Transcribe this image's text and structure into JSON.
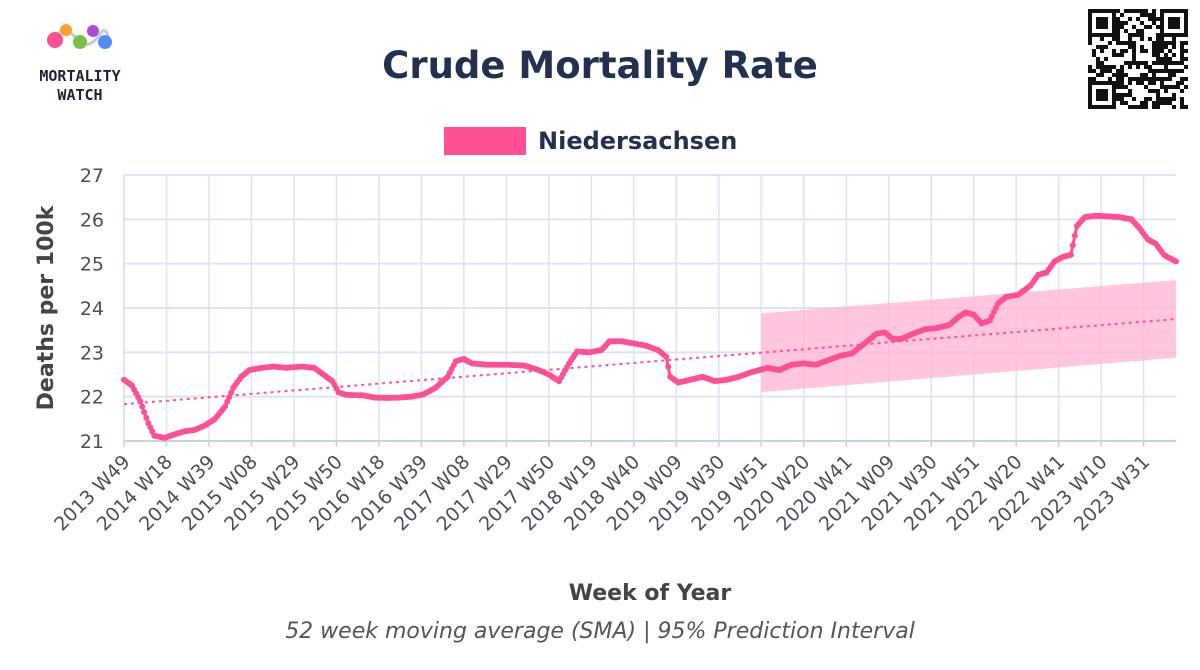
{
  "colors": {
    "series": "#ff4f95",
    "band": "#ffb3d1",
    "trend": "#ff4f95",
    "title": "#233150",
    "grid": "#dde3f3",
    "axis": "#c8d0e8"
  },
  "logo": {
    "line1": "MORTALITY",
    "line2": "WATCH",
    "icon": "mortality-watch-logo-icon"
  },
  "qr": {
    "icon": "qr-code-icon"
  },
  "chart_data": {
    "type": "line",
    "title": "Crude Mortality Rate",
    "subtitle": "52 week moving average (SMA) | 95% Prediction Interval",
    "xlabel": "Week of Year",
    "ylabel": "Deaths per 100k",
    "ylim": [
      21,
      27
    ],
    "yticks": [
      21,
      22,
      23,
      24,
      25,
      26,
      27
    ],
    "xlim": [
      0,
      520
    ],
    "xticks": [
      {
        "label": "2013 W49",
        "x": 0
      },
      {
        "label": "2014 W18",
        "x": 21
      },
      {
        "label": "2014 W39",
        "x": 42
      },
      {
        "label": "2015 W08",
        "x": 63
      },
      {
        "label": "2015 W29",
        "x": 84
      },
      {
        "label": "2015 W50",
        "x": 105
      },
      {
        "label": "2016 W18",
        "x": 126
      },
      {
        "label": "2016 W39",
        "x": 147
      },
      {
        "label": "2017 W08",
        "x": 168
      },
      {
        "label": "2017 W29",
        "x": 189
      },
      {
        "label": "2017 W50",
        "x": 210
      },
      {
        "label": "2018 W19",
        "x": 231
      },
      {
        "label": "2018 W40",
        "x": 252
      },
      {
        "label": "2019 W09",
        "x": 273
      },
      {
        "label": "2019 W30",
        "x": 294
      },
      {
        "label": "2019 W51",
        "x": 315
      },
      {
        "label": "2020 W20",
        "x": 336
      },
      {
        "label": "2020 W41",
        "x": 357
      },
      {
        "label": "2021 W09",
        "x": 378
      },
      {
        "label": "2021 W30",
        "x": 399
      },
      {
        "label": "2021 W51",
        "x": 420
      },
      {
        "label": "2022 W20",
        "x": 441
      },
      {
        "label": "2022 W41",
        "x": 462
      },
      {
        "label": "2023 W10",
        "x": 483
      },
      {
        "label": "2023 W31",
        "x": 504
      }
    ],
    "legend": [
      {
        "name": "Niedersachsen",
        "color": "#ff4f95",
        "position": "top-center"
      }
    ],
    "series": [
      {
        "name": "Niedersachsen",
        "keypoints": [
          [
            0,
            22.38
          ],
          [
            4,
            22.25
          ],
          [
            8,
            21.9
          ],
          [
            12,
            21.4
          ],
          [
            15,
            21.12
          ],
          [
            20,
            21.07
          ],
          [
            25,
            21.15
          ],
          [
            30,
            21.22
          ],
          [
            35,
            21.25
          ],
          [
            40,
            21.35
          ],
          [
            45,
            21.5
          ],
          [
            50,
            21.78
          ],
          [
            54,
            22.2
          ],
          [
            58,
            22.45
          ],
          [
            62,
            22.6
          ],
          [
            68,
            22.65
          ],
          [
            74,
            22.68
          ],
          [
            80,
            22.65
          ],
          [
            88,
            22.68
          ],
          [
            94,
            22.65
          ],
          [
            100,
            22.45
          ],
          [
            103,
            22.35
          ],
          [
            106,
            22.1
          ],
          [
            110,
            22.04
          ],
          [
            118,
            22.03
          ],
          [
            124,
            21.98
          ],
          [
            130,
            21.97
          ],
          [
            136,
            21.98
          ],
          [
            142,
            22.0
          ],
          [
            148,
            22.05
          ],
          [
            154,
            22.2
          ],
          [
            160,
            22.45
          ],
          [
            164,
            22.8
          ],
          [
            168,
            22.85
          ],
          [
            172,
            22.75
          ],
          [
            180,
            22.72
          ],
          [
            190,
            22.72
          ],
          [
            198,
            22.7
          ],
          [
            205,
            22.6
          ],
          [
            210,
            22.5
          ],
          [
            215,
            22.35
          ],
          [
            220,
            22.75
          ],
          [
            224,
            23.02
          ],
          [
            230,
            23.0
          ],
          [
            236,
            23.05
          ],
          [
            240,
            23.25
          ],
          [
            246,
            23.25
          ],
          [
            252,
            23.2
          ],
          [
            258,
            23.15
          ],
          [
            264,
            23.05
          ],
          [
            268,
            22.9
          ],
          [
            270,
            22.45
          ],
          [
            274,
            22.32
          ],
          [
            280,
            22.38
          ],
          [
            286,
            22.45
          ],
          [
            292,
            22.35
          ],
          [
            298,
            22.38
          ],
          [
            304,
            22.45
          ],
          [
            310,
            22.55
          ],
          [
            318,
            22.65
          ],
          [
            324,
            22.6
          ],
          [
            330,
            22.72
          ],
          [
            336,
            22.75
          ],
          [
            342,
            22.72
          ],
          [
            348,
            22.82
          ],
          [
            354,
            22.92
          ],
          [
            360,
            22.98
          ],
          [
            366,
            23.2
          ],
          [
            372,
            23.42
          ],
          [
            376,
            23.45
          ],
          [
            380,
            23.3
          ],
          [
            384,
            23.3
          ],
          [
            390,
            23.42
          ],
          [
            396,
            23.52
          ],
          [
            402,
            23.55
          ],
          [
            408,
            23.62
          ],
          [
            412,
            23.78
          ],
          [
            416,
            23.9
          ],
          [
            420,
            23.85
          ],
          [
            424,
            23.65
          ],
          [
            428,
            23.72
          ],
          [
            432,
            24.1
          ],
          [
            436,
            24.25
          ],
          [
            442,
            24.3
          ],
          [
            448,
            24.5
          ],
          [
            452,
            24.75
          ],
          [
            456,
            24.8
          ],
          [
            460,
            25.05
          ],
          [
            464,
            25.15
          ],
          [
            468,
            25.2
          ],
          [
            471,
            25.85
          ],
          [
            475,
            26.05
          ],
          [
            480,
            26.08
          ],
          [
            486,
            26.07
          ],
          [
            492,
            26.05
          ],
          [
            498,
            26.0
          ],
          [
            502,
            25.8
          ],
          [
            506,
            25.55
          ],
          [
            510,
            25.45
          ],
          [
            514,
            25.2
          ],
          [
            517,
            25.12
          ],
          [
            520,
            25.05
          ]
        ]
      }
    ],
    "trend": {
      "x": [
        0,
        520
      ],
      "y": [
        21.83,
        23.75
      ]
    },
    "prediction_interval": {
      "x": [
        315,
        520
      ],
      "lower": [
        22.1,
        22.88
      ],
      "upper": [
        23.88,
        24.63
      ]
    }
  }
}
